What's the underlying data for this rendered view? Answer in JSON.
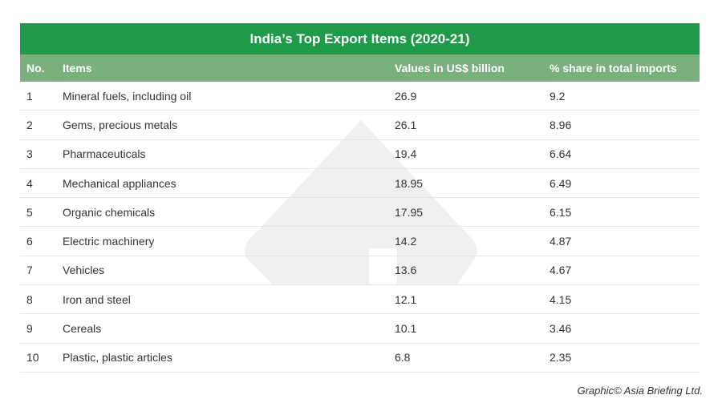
{
  "table": {
    "title": "India’s Top Export Items (2020-21)",
    "headers": {
      "no": "No.",
      "items": "Items",
      "values": "Values in US$ billion",
      "share": "% share in total imports"
    },
    "rows": [
      {
        "no": "1",
        "item": "Mineral fuels, including oil",
        "value": "26.9",
        "share": "9.2"
      },
      {
        "no": "2",
        "item": "Gems, precious metals",
        "value": "26.1",
        "share": "8.96"
      },
      {
        "no": "3",
        "item": "Pharmaceuticals",
        "value": "19.4",
        "share": "6.64"
      },
      {
        "no": "4",
        "item": "Mechanical appliances",
        "value": "18.95",
        "share": "6.49"
      },
      {
        "no": "5",
        "item": "Organic chemicals",
        "value": "17.95",
        "share": "6.15"
      },
      {
        "no": "6",
        "item": "Electric machinery",
        "value": "14.2",
        "share": "4.87"
      },
      {
        "no": "7",
        "item": "Vehicles",
        "value": "13.6",
        "share": "4.67"
      },
      {
        "no": "8",
        "item": "Iron and steel",
        "value": "12.1",
        "share": "4.15"
      },
      {
        "no": "9",
        "item": "Cereals",
        "value": "10.1",
        "share": "3.46"
      },
      {
        "no": "10",
        "item": "Plastic, plastic articles",
        "value": "6.8",
        "share": "2.35"
      }
    ]
  },
  "credit": "Graphic© Asia Briefing Ltd.",
  "colors": {
    "title_bg": "#1e9a48",
    "header_bg": "#7ab07d",
    "watermark": "#f0f0f0"
  },
  "icons": {
    "watermark": "asia-briefing-logo-watermark"
  }
}
